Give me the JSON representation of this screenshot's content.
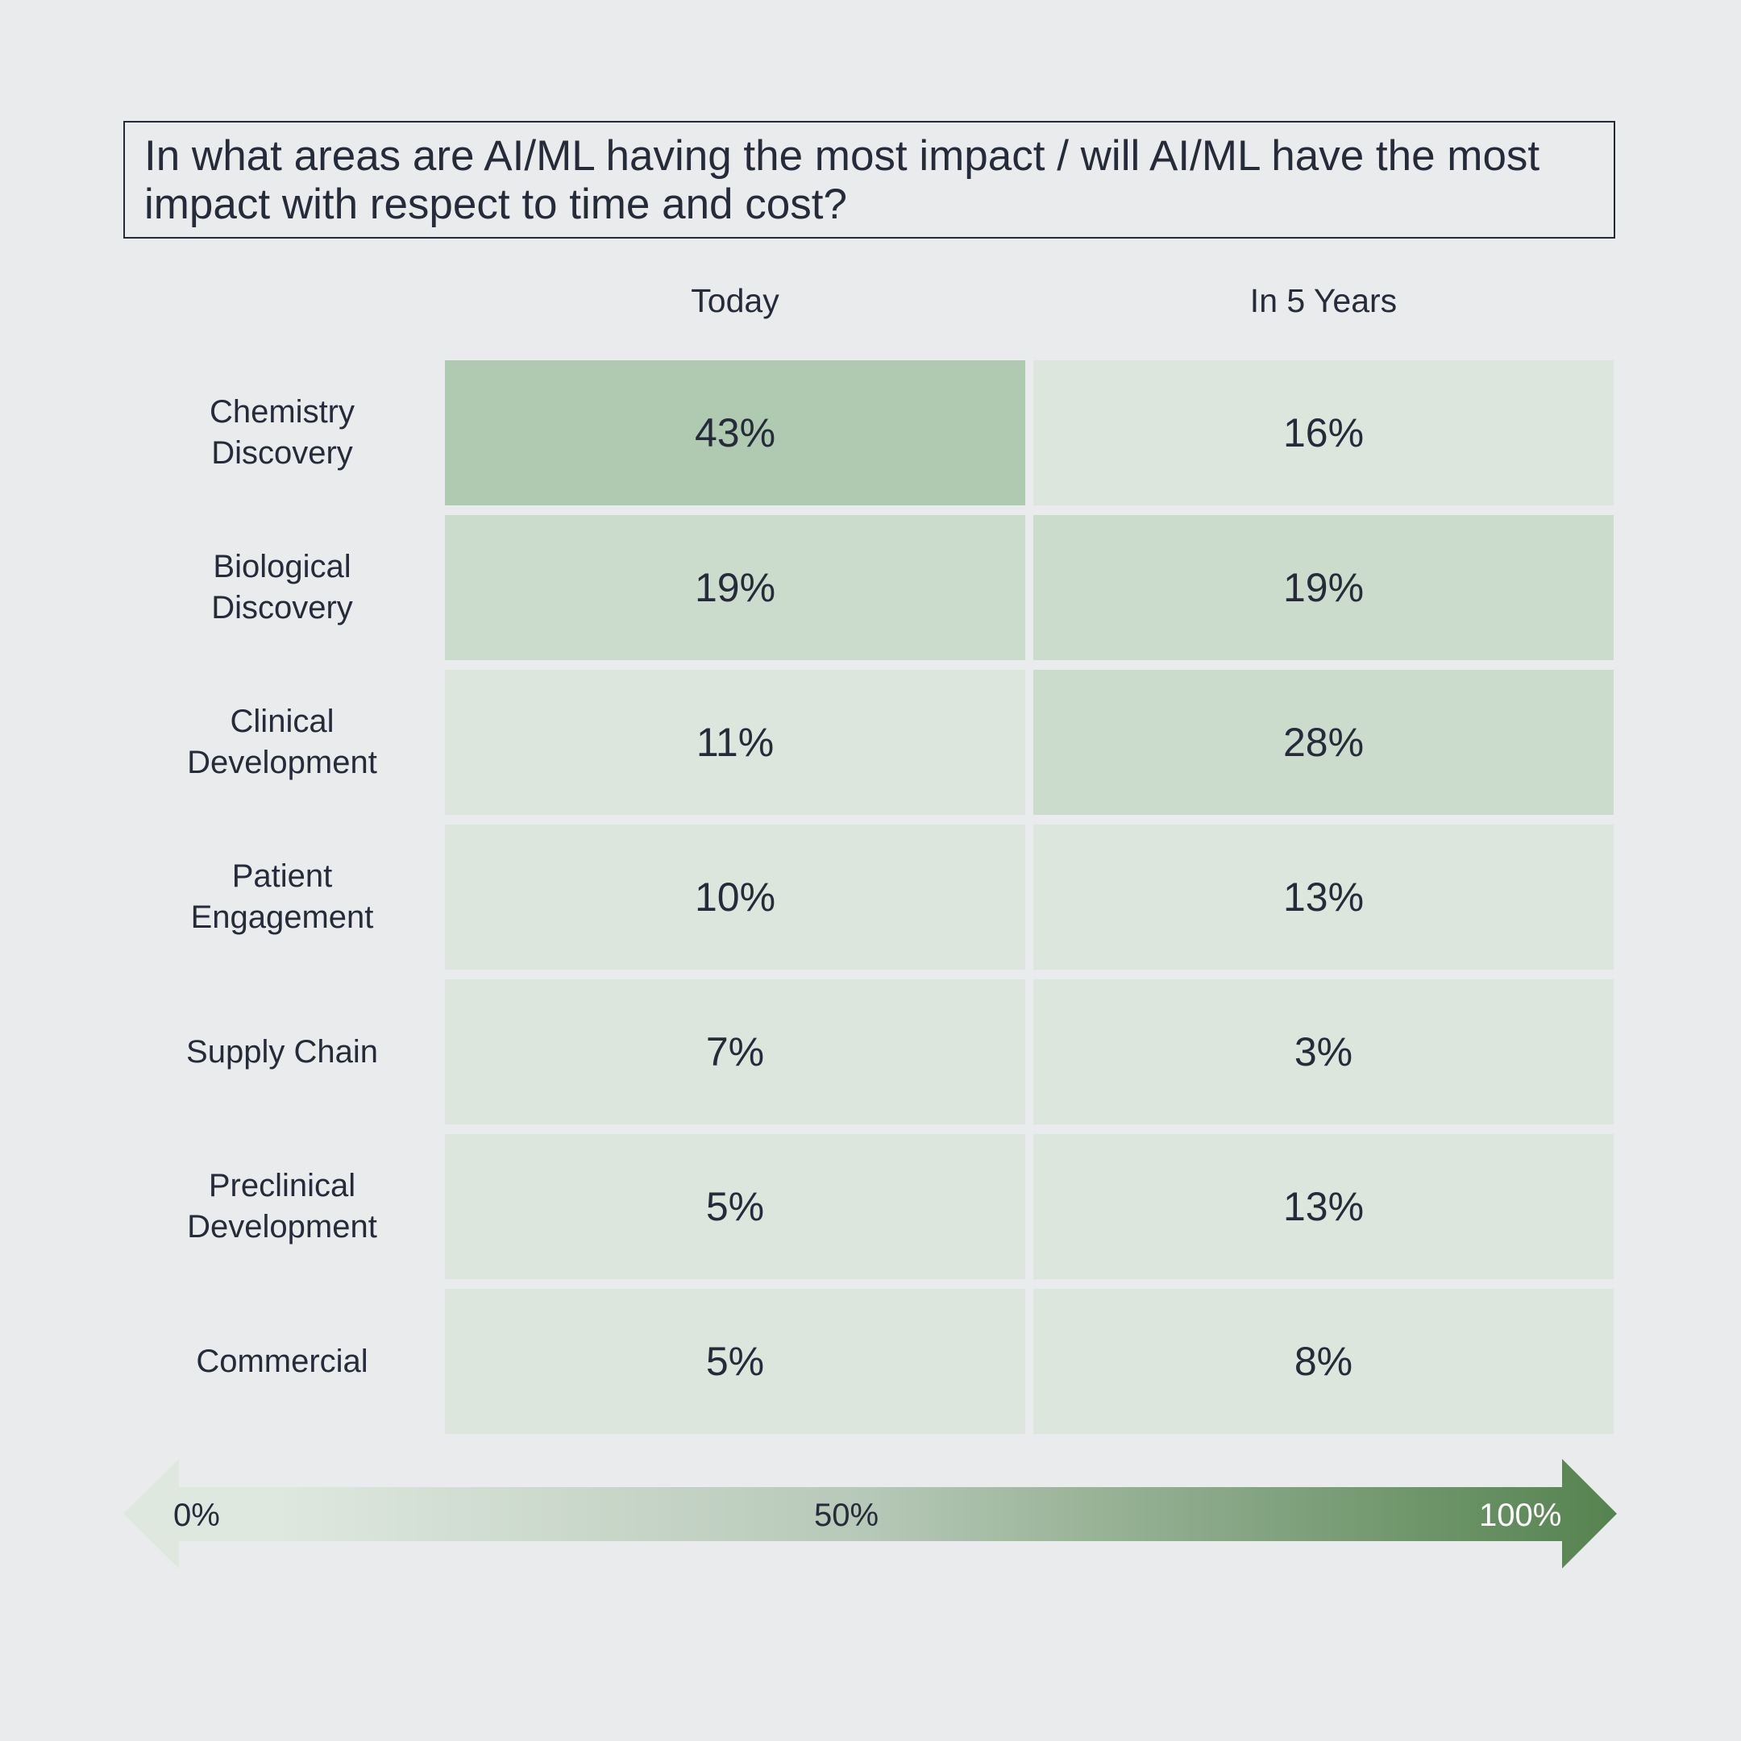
{
  "chart_data": {
    "type": "heatmap",
    "title": "In what areas are AI/ML having the most impact / will AI/ML have the most impact with respect to time and cost?",
    "columns": [
      "Today",
      "In 5 Years"
    ],
    "rows": [
      {
        "label": "Chemistry\nDiscovery",
        "values": [
          43,
          16
        ],
        "display": [
          "43%",
          "16%"
        ]
      },
      {
        "label": "Biological\nDiscovery",
        "values": [
          19,
          19
        ],
        "display": [
          "19%",
          "19%"
        ]
      },
      {
        "label": "Clinical\nDevelopment",
        "values": [
          11,
          28
        ],
        "display": [
          "11%",
          "28%"
        ]
      },
      {
        "label": "Patient\nEngagement",
        "values": [
          10,
          13
        ],
        "display": [
          "10%",
          "13%"
        ]
      },
      {
        "label": "Supply Chain",
        "values": [
          7,
          3
        ],
        "display": [
          "7%",
          "3%"
        ]
      },
      {
        "label": "Preclinical\nDevelopment",
        "values": [
          5,
          13
        ],
        "display": [
          "5%",
          "13%"
        ]
      },
      {
        "label": "Commercial",
        "values": [
          5,
          8
        ],
        "display": [
          "5%",
          "8%"
        ]
      }
    ],
    "cell_colors": [
      [
        "#b0cab1",
        "#dce6dd"
      ],
      [
        "#cbdccd",
        "#cbdccd"
      ],
      [
        "#dce6dd",
        "#cbdccd"
      ],
      [
        "#dce6dd",
        "#dce6dd"
      ],
      [
        "#dce6dd",
        "#dce6dd"
      ],
      [
        "#dce6dd",
        "#dce6dd"
      ],
      [
        "#dce6dd",
        "#dce6dd"
      ]
    ],
    "color_scale": {
      "min_label": "0%",
      "mid_label": "50%",
      "max_label": "100%",
      "min_color": "#dfe8df",
      "mid_color": "#b6c8b7",
      "max_color": "#55834f"
    }
  },
  "colors": {
    "background": "#eaebed",
    "text": "#262b3a",
    "scale_max_text": "#ffffff"
  }
}
